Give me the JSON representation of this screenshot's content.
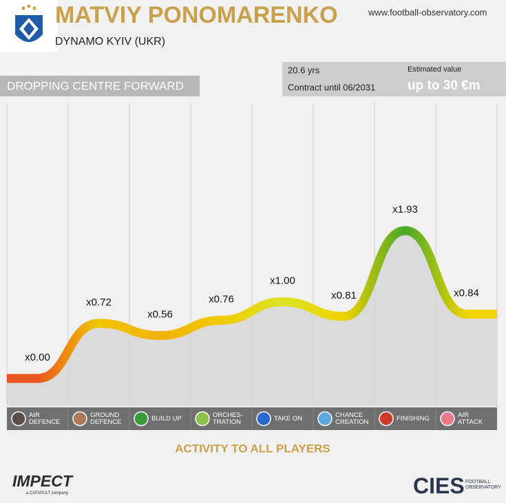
{
  "header": {
    "title": "MATVIY PONOMARENKO",
    "club": "DYNAMO KYIV (UKR)",
    "website": "www.football-observatory.com",
    "position": "DROPPING CENTRE FORWARD",
    "age": "20.6 yrs",
    "contract": "Contract until 06/2031",
    "value_label": "Estimated value",
    "value": "up to 30 €m"
  },
  "chart_data": {
    "type": "line",
    "categories": [
      "AIR\nDEFENCE",
      "GROUND\nDEFENCE",
      "BUILD UP",
      "ORCHES-\nTRATION",
      "TAKE ON",
      "CHANCE\nCREATION",
      "FINISHING",
      "AIR\nATTACK"
    ],
    "values": [
      0.0,
      0.72,
      0.56,
      0.76,
      1.0,
      0.81,
      1.93,
      0.84
    ],
    "value_labels": [
      "x0.00",
      "x0.72",
      "x0.56",
      "x0.76",
      "x1.00",
      "x0.81",
      "x1.93",
      "x0.84"
    ],
    "ylim": [
      0,
      2.2
    ],
    "xlabel": "ACTIVITY TO ALL PLAYERS"
  },
  "footer": {
    "impect": "IMPECT",
    "impect_sub": "a CATAPULT company",
    "cies": "CIES",
    "cies_sub": "FOOTBALL\nOBSERVATORY"
  }
}
